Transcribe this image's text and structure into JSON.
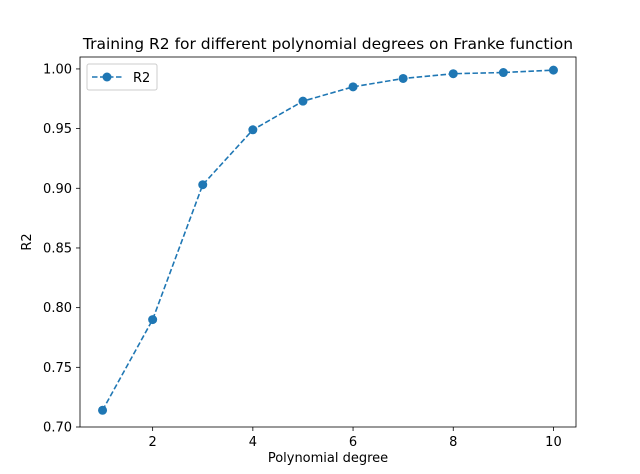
{
  "chart_data": {
    "type": "line",
    "title": "Training R2 for different polynomial degrees on Franke function",
    "xlabel": "Polynomial degree",
    "ylabel": "R2",
    "xlim": [
      0.55,
      10.45
    ],
    "ylim": [
      0.7,
      1.01
    ],
    "xticks": [
      2,
      4,
      6,
      8,
      10
    ],
    "yticks": [
      0.7,
      0.75,
      0.8,
      0.85,
      0.9,
      0.95,
      1.0
    ],
    "xtick_labels": [
      "2",
      "4",
      "6",
      "8",
      "10"
    ],
    "ytick_labels": [
      "0.70",
      "0.75",
      "0.80",
      "0.85",
      "0.90",
      "0.95",
      "1.00"
    ],
    "grid": false,
    "legend_position": "top-left",
    "series": [
      {
        "name": "R2",
        "color": "#1f77b4",
        "line_style": "dashed",
        "marker": "circle",
        "x": [
          1,
          2,
          3,
          4,
          5,
          6,
          7,
          8,
          9,
          10
        ],
        "y": [
          0.714,
          0.79,
          0.903,
          0.949,
          0.973,
          0.985,
          0.992,
          0.996,
          0.997,
          0.999
        ]
      }
    ]
  }
}
